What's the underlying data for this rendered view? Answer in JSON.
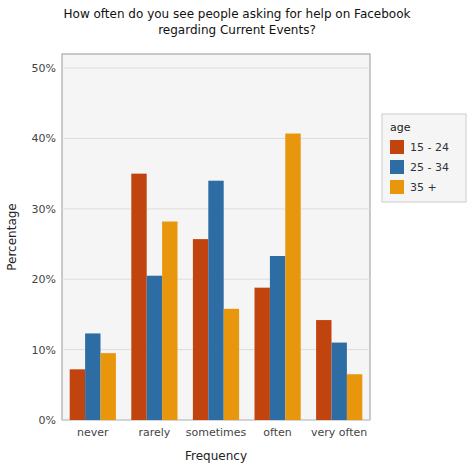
{
  "chart_data": {
    "type": "bar",
    "title": "How often do you see people asking for help on Facebook\nregarding Current Events?",
    "xlabel": "Frequency",
    "ylabel": "Percentage",
    "categories": [
      "never",
      "rarely",
      "sometimes",
      "often",
      "very often"
    ],
    "series": [
      {
        "name": "15 - 24",
        "color": "#C1440E",
        "values": [
          7.2,
          35.0,
          25.7,
          18.8,
          14.2
        ]
      },
      {
        "name": "25 - 34",
        "color": "#2E6DA4",
        "values": [
          12.3,
          20.5,
          34.0,
          23.3,
          11.0
        ]
      },
      {
        "name": "35 +",
        "color": "#E8960C",
        "values": [
          9.5,
          28.2,
          15.8,
          40.7,
          6.5
        ]
      }
    ],
    "ylim": [
      0,
      52
    ],
    "yticks": [
      {
        "value": 0,
        "label": "0%"
      },
      {
        "value": 10,
        "label": "10%"
      },
      {
        "value": 20,
        "label": "20%"
      },
      {
        "value": 30,
        "label": "30%"
      },
      {
        "value": 40,
        "label": "40%"
      },
      {
        "value": 50,
        "label": "50%"
      }
    ],
    "grid": true,
    "legend": "right",
    "legend_title": "age"
  }
}
